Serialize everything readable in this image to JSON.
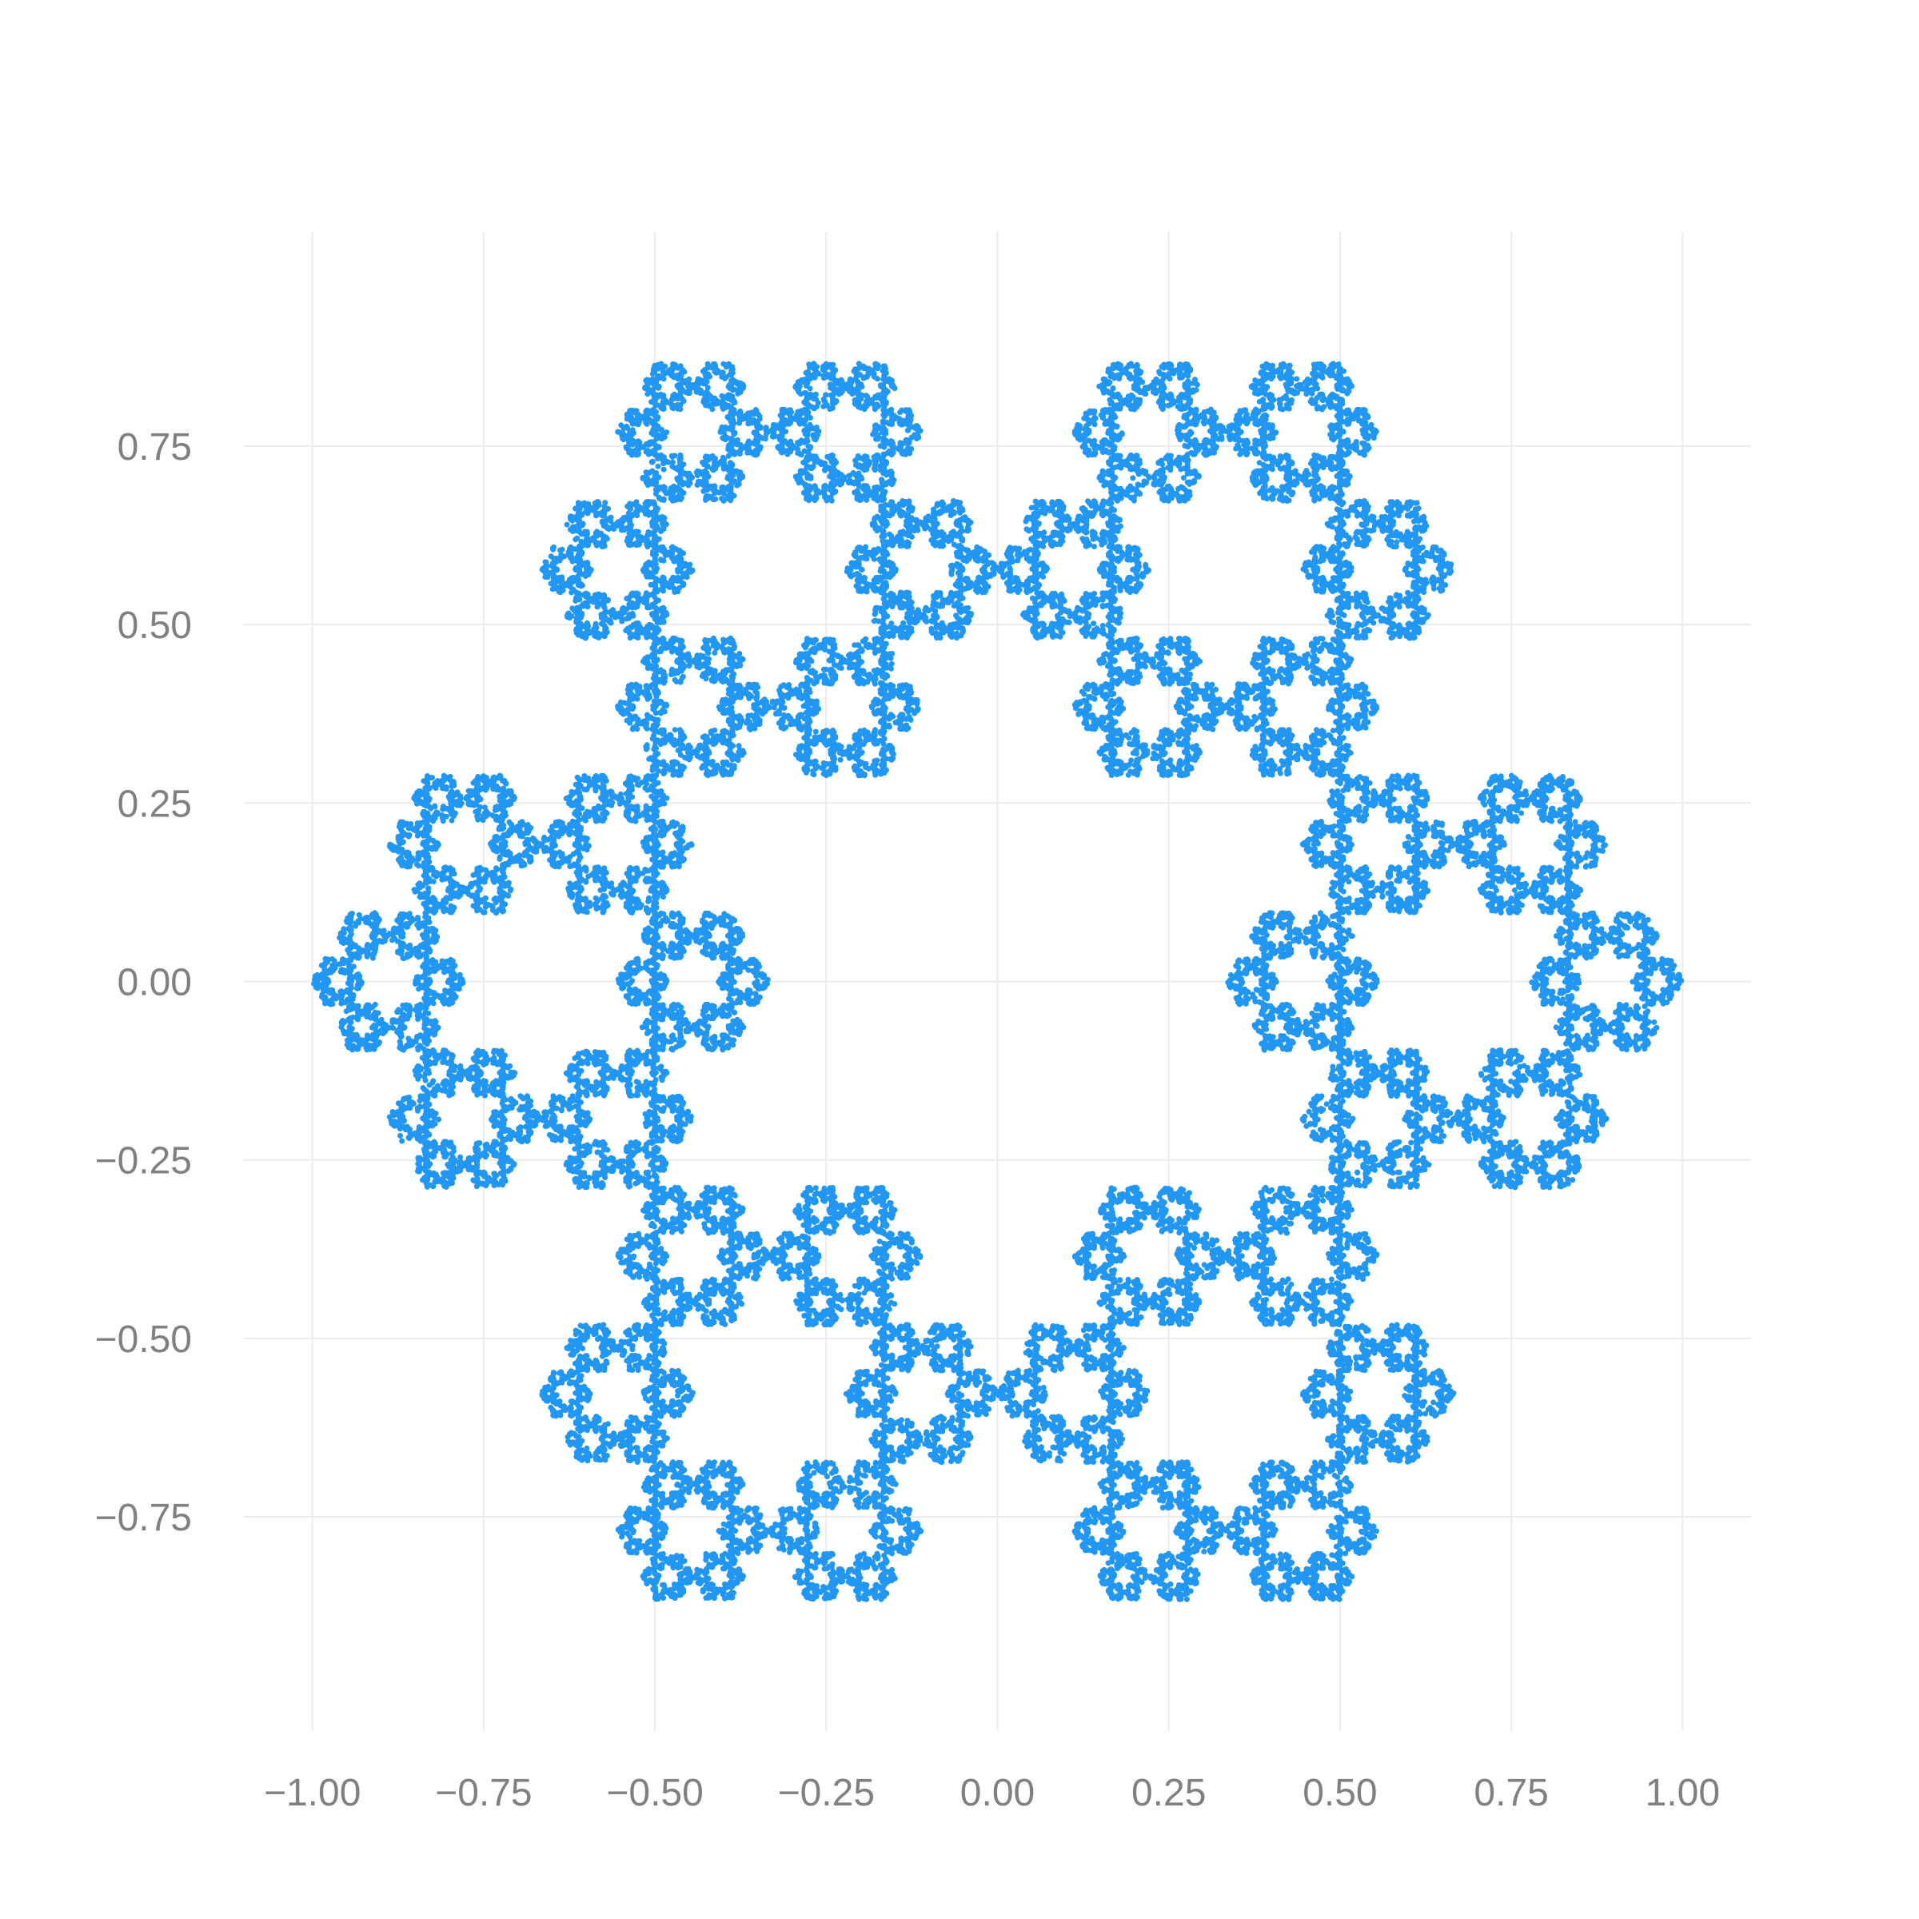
{
  "chart_data": {
    "type": "scatter",
    "title": "",
    "xlabel": "",
    "ylabel": "",
    "xlim": [
      -1.1,
      1.1
    ],
    "ylim": [
      -1.05,
      1.05
    ],
    "grid": true,
    "legend": "none",
    "x_ticks": [
      -1.0,
      -0.75,
      -0.5,
      -0.25,
      0.0,
      0.25,
      0.5,
      0.75,
      1.0
    ],
    "x_tick_labels": [
      "−1.00",
      "−0.75",
      "−0.50",
      "−0.25",
      "0.00",
      "0.25",
      "0.50",
      "0.75",
      "1.00"
    ],
    "y_ticks": [
      -0.75,
      -0.5,
      -0.25,
      0.0,
      0.25,
      0.5,
      0.75
    ],
    "y_tick_labels": [
      "−0.75",
      "−0.50",
      "−0.25",
      "0.00",
      "0.25",
      "0.50",
      "0.75"
    ],
    "series": [
      {
        "point_color": "#2196F3",
        "pattern": "hexaflake chaos-game fractal",
        "contraction_ratio": 0.3333,
        "level0_centers": [
          {
            "x": 0.667,
            "y": 0.0
          },
          {
            "x": 0.333,
            "y": 0.577
          },
          {
            "x": -0.333,
            "y": 0.577
          },
          {
            "x": -0.667,
            "y": 0.0
          },
          {
            "x": -0.333,
            "y": -0.577
          },
          {
            "x": 0.333,
            "y": -0.577
          }
        ],
        "point_count": 40000
      }
    ]
  }
}
